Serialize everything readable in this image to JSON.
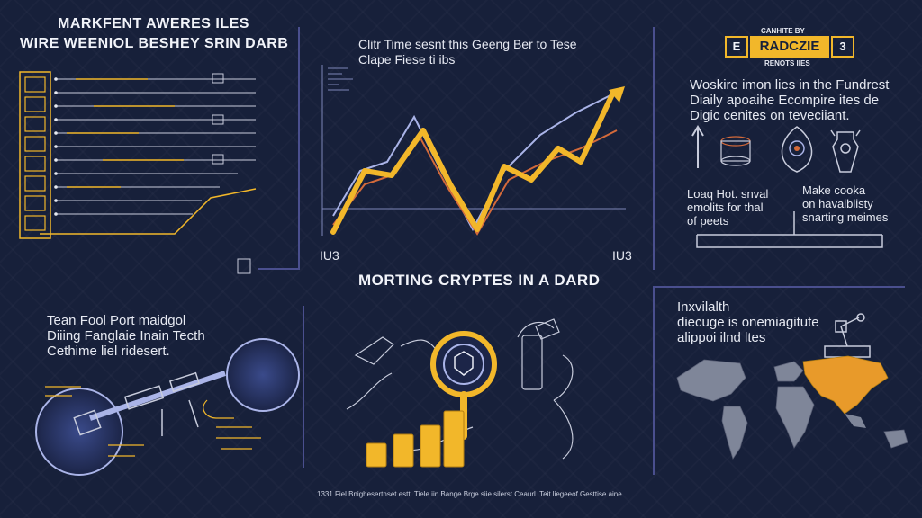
{
  "top_left": {
    "title_line1": "MARKFENT AWERES ILES",
    "title_line2": "WIRE WEENIOL BESHEY SRIN DARB"
  },
  "top_center": {
    "heading_line1": "Clitr Time sesnt this Geeng Ber to Tese",
    "heading_line2": "Clape Fiese ti ibs",
    "x_start": "IU3",
    "x_end": "IU3"
  },
  "top_right": {
    "badge_top": "CANHITE BY",
    "badge_main": "RADCZIE",
    "badge_sub": "RENOTS IIES",
    "badge_left": "E",
    "badge_right": "3",
    "text_line1": "Woskire imon lies in the Fundrest",
    "text_line2": "Diaily apoaihe Ecompire ites de",
    "text_line3": "Digic cenites on teveciiant.",
    "left_caption": [
      "Loaq Hot. snval",
      "emolits for thal",
      "of peets"
    ],
    "right_caption": [
      "Make cooka",
      "on havaiblisty",
      "snarting meimes"
    ]
  },
  "center": {
    "heading": "MORTING CRYPTES IN A DARD"
  },
  "bottom_left": {
    "line1": "Tean Fool Port maidgol",
    "line2": "Diiing Fanglaie Inain Tecth",
    "line3": "Cethime liel ridesert."
  },
  "bottom_right": {
    "line1": "Inxvilalth",
    "line2": "diecuge is onemiagitute",
    "line3": "alippoi ilnd ltes"
  },
  "footer": {
    "caption": "1331 Fiel Bnighesertnset estt. Tiele iin Bange Brge siie silerst Ceaurl. Teit liegeeof Gesttise aine"
  },
  "colors": {
    "background": "#17203a",
    "accent_gold": "#f2b72a",
    "line_blue": "#aab4e8",
    "line_orange": "#d46a3a",
    "divider": "#4a4f8e",
    "map_highlight": "#e89a2a"
  },
  "icons": [
    "arrow-up-icon",
    "coin-stack-icon",
    "target-icon",
    "bottle-icon",
    "shield-icon",
    "magnifier-icon",
    "world-map-icon",
    "robot-arm-icon",
    "satellite-icon"
  ]
}
